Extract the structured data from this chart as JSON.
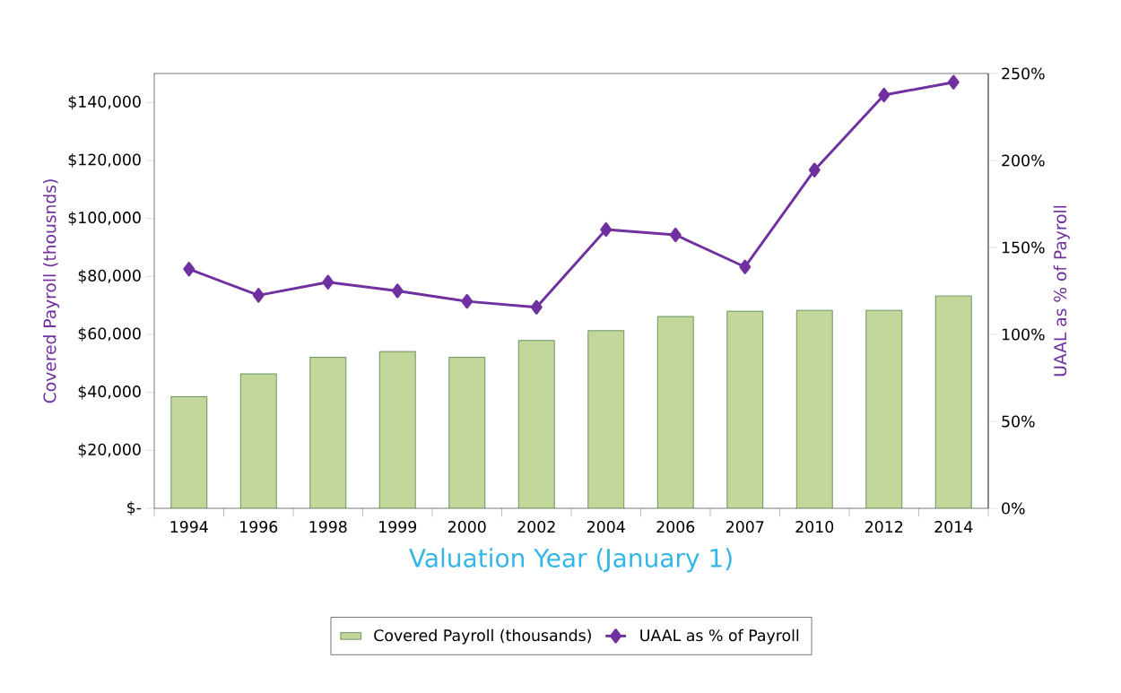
{
  "chart_data": {
    "type": "bar",
    "categories": [
      "1994",
      "1996",
      "1998",
      "1999",
      "2000",
      "2002",
      "2004",
      "2006",
      "2007",
      "2010",
      "2012",
      "2014"
    ],
    "xlabel": "Valuation Year (January 1)",
    "ylabel": "Covered Payroll (thousnds)",
    "y2label": "UAAL as % of Payroll",
    "series": [
      {
        "name": "Covered Payroll (thousands)",
        "color": "#c4d79b",
        "values": [
          38500,
          46400,
          52100,
          54100,
          52100,
          57900,
          61300,
          66200,
          68000,
          68300,
          68300,
          73300
        ]
      },
      {
        "name": "UAAL as % of Payroll",
        "type": "line",
        "axis": "y2",
        "marker": "diamond",
        "color": "#7030a0",
        "values": [
          137.5,
          122.5,
          130,
          125,
          119,
          115.6,
          160.3,
          157.2,
          138.8,
          194.5,
          237.6,
          245
        ]
      }
    ],
    "ylim": [
      0,
      150000
    ],
    "yticks": [
      {
        "value": 0,
        "label": "$-"
      },
      {
        "value": 20000,
        "label": "$20,000"
      },
      {
        "value": 40000,
        "label": "$40,000"
      },
      {
        "value": 60000,
        "label": "$60,000"
      },
      {
        "value": 80000,
        "label": "$80,000"
      },
      {
        "value": 100000,
        "label": "$100,000"
      },
      {
        "value": 120000,
        "label": "$120,000"
      },
      {
        "value": 140000,
        "label": "$140,000"
      }
    ],
    "y2lim": [
      0,
      250
    ],
    "y2ticks": [
      {
        "value": 0,
        "label": "0%"
      },
      {
        "value": 50,
        "label": "50%"
      },
      {
        "value": 100,
        "label": "100%"
      },
      {
        "value": 150,
        "label": "150%"
      },
      {
        "value": 200,
        "label": "200%"
      },
      {
        "value": 250,
        "label": "250%"
      }
    ],
    "legend": "bottom",
    "grid": false
  }
}
